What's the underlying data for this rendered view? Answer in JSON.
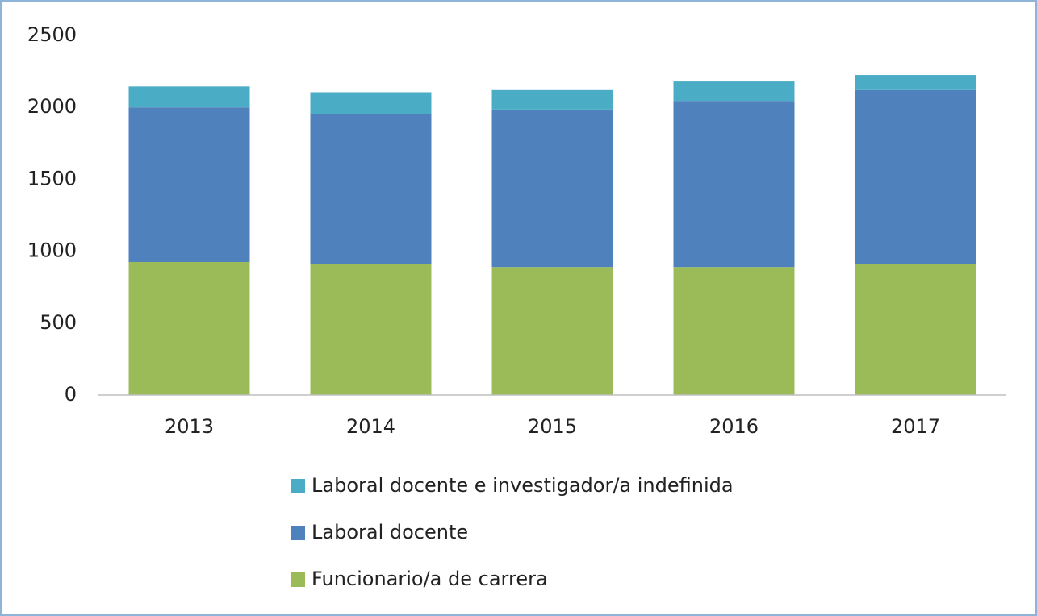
{
  "chart_data": {
    "type": "stacked_bar",
    "categories": [
      "2013",
      "2014",
      "2015",
      "2016",
      "2017"
    ],
    "series": [
      {
        "name": "Funcionario/a de carrera",
        "color": "#9bbb59",
        "values": [
          925,
          910,
          890,
          890,
          910
        ]
      },
      {
        "name": "Laboral docente",
        "color": "#4f81bd",
        "values": [
          1075,
          1045,
          1095,
          1155,
          1210
        ]
      },
      {
        "name": "Laboral docente e investigador/a indefinida",
        "color": "#4bacc6",
        "values": [
          145,
          150,
          135,
          135,
          105
        ]
      }
    ],
    "ylim": [
      0,
      2500
    ],
    "yticks": [
      0,
      500,
      1000,
      1500,
      2000,
      2500
    ],
    "grid": false
  }
}
